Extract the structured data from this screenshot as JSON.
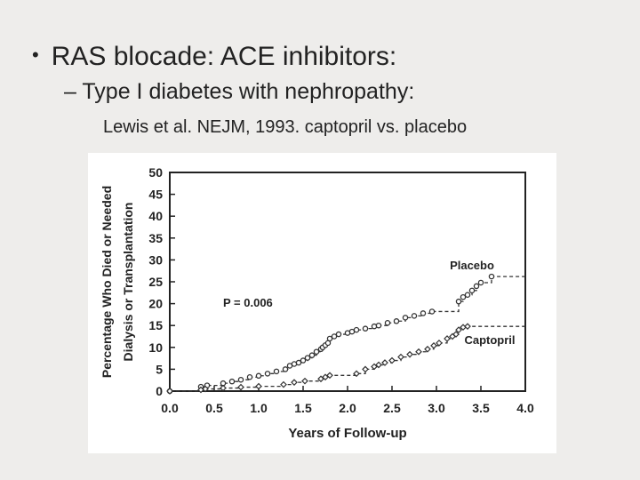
{
  "slide": {
    "bullet1": "RAS blocade: ACE inhibitors:",
    "bullet2_dash": "–",
    "bullet2": "Type I diabetes with nephropathy:",
    "bullet3": "Lewis et al. NEJM, 1993.  captopril vs. placebo"
  },
  "chart_data": {
    "type": "line",
    "title": "",
    "xlabel": "Years of Follow-up",
    "ylabel_line1": "Percentage Who Died or Needed",
    "ylabel_line2": "Dialysis or Transplantation",
    "xlim": [
      0.0,
      4.0
    ],
    "ylim": [
      0,
      50
    ],
    "x_ticks": [
      "0.0",
      "0.5",
      "1.0",
      "1.5",
      "2.0",
      "2.5",
      "3.0",
      "3.5",
      "4.0"
    ],
    "y_ticks": [
      "0",
      "5",
      "10",
      "15",
      "20",
      "25",
      "30",
      "35",
      "40",
      "45",
      "50"
    ],
    "annotation": "P = 0.006",
    "line_style": "dashed step",
    "grid": false,
    "series": [
      {
        "name": "Placebo",
        "color": "#333333",
        "x": [
          0.0,
          0.35,
          0.42,
          0.6,
          0.7,
          0.8,
          0.9,
          1.0,
          1.1,
          1.2,
          1.3,
          1.35,
          1.4,
          1.45,
          1.5,
          1.55,
          1.6,
          1.65,
          1.7,
          1.72,
          1.75,
          1.78,
          1.8,
          1.85,
          1.9,
          2.0,
          2.05,
          2.1,
          2.2,
          2.3,
          2.35,
          2.45,
          2.55,
          2.65,
          2.75,
          2.85,
          2.95,
          3.25,
          3.3,
          3.35,
          3.4,
          3.45,
          3.5,
          3.62,
          4.0
        ],
        "y": [
          0,
          1,
          1.3,
          1.8,
          2.2,
          2.6,
          3.2,
          3.5,
          4.0,
          4.5,
          5.0,
          5.8,
          6.2,
          6.5,
          7.0,
          7.6,
          8.2,
          9.0,
          9.6,
          10.0,
          10.5,
          11.0,
          12.0,
          12.5,
          13.0,
          13.3,
          13.6,
          14.0,
          14.3,
          14.8,
          15.0,
          15.6,
          16.0,
          16.8,
          17.2,
          17.8,
          18.2,
          20.5,
          21.5,
          22.0,
          23.0,
          24.0,
          24.8,
          26.2,
          26.2
        ]
      },
      {
        "name": "Captopril",
        "color": "#333333",
        "x": [
          0.0,
          0.35,
          0.4,
          0.6,
          0.8,
          1.0,
          1.28,
          1.4,
          1.52,
          1.7,
          1.75,
          1.8,
          2.1,
          2.2,
          2.3,
          2.35,
          2.42,
          2.5,
          2.6,
          2.7,
          2.8,
          2.9,
          2.97,
          3.03,
          3.12,
          3.18,
          3.22,
          3.25,
          3.3,
          3.35,
          4.0
        ],
        "y": [
          0,
          0.3,
          0.5,
          0.7,
          0.9,
          1.1,
          1.5,
          2.0,
          2.3,
          2.8,
          3.2,
          3.6,
          4.0,
          5.0,
          5.6,
          6.0,
          6.5,
          7.0,
          7.8,
          8.4,
          9.0,
          9.6,
          10.4,
          11.0,
          12.0,
          12.5,
          13.0,
          14.0,
          14.6,
          14.8,
          14.8
        ]
      }
    ]
  }
}
